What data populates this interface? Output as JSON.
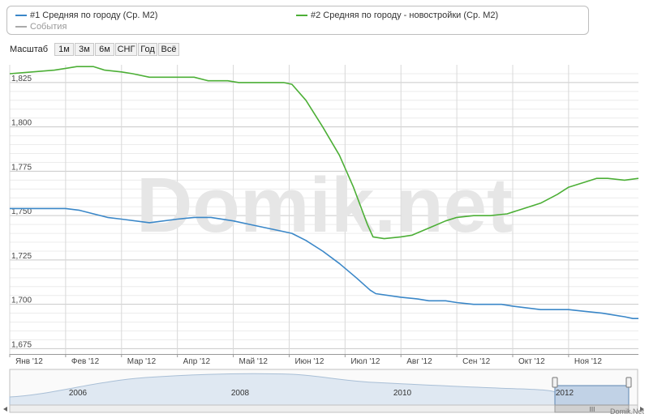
{
  "legend": {
    "items": [
      {
        "label": "#1 Средняя по городу (Ср. М2)",
        "color": "#3a87c8"
      },
      {
        "label": "#2 Средняя по городу - новостройки (Ср. М2)",
        "color": "#4caf36"
      },
      {
        "label": "События",
        "color": "#aaaaaa"
      }
    ]
  },
  "toolbar": {
    "scale_label": "Масштаб",
    "buttons": [
      "1м",
      "3м",
      "6м",
      "СНГ",
      "Год",
      "Всё"
    ]
  },
  "watermark": "Domik.net",
  "credit": "Domik.Net",
  "navigator": {
    "years": [
      "2006",
      "2008",
      "2010",
      "2012"
    ],
    "handle_glyph": "III"
  },
  "chart_data": {
    "type": "line",
    "title": "",
    "xlabel": "",
    "ylabel": "",
    "x_ticks": [
      "Янв '12",
      "Фев '12",
      "Мар '12",
      "Апр '12",
      "Май '12",
      "Июн '12",
      "Июл '12",
      "Авг '12",
      "Сен '12",
      "Окт '12",
      "Ноя '12"
    ],
    "y_ticks": [
      "1,675",
      "1,700",
      "1,725",
      "1,750",
      "1,775",
      "1,800",
      "1,825"
    ],
    "ylim": [
      1672,
      1835
    ],
    "x_range": [
      0,
      11.25
    ],
    "grid": true,
    "legend_position": "top",
    "series": [
      {
        "name": "#1 Средняя по городу (Ср. М2)",
        "color": "#3a87c8",
        "points": [
          [
            0,
            1754
          ],
          [
            0.5,
            1754
          ],
          [
            1.0,
            1754
          ],
          [
            1.25,
            1753
          ],
          [
            1.5,
            1751
          ],
          [
            1.75,
            1749
          ],
          [
            2.0,
            1748
          ],
          [
            2.5,
            1746
          ],
          [
            3.0,
            1748
          ],
          [
            3.3,
            1749
          ],
          [
            3.6,
            1749
          ],
          [
            4.0,
            1747
          ],
          [
            4.3,
            1745
          ],
          [
            4.6,
            1743
          ],
          [
            4.9,
            1741
          ],
          [
            5.05,
            1740
          ],
          [
            5.3,
            1736
          ],
          [
            5.6,
            1730
          ],
          [
            5.9,
            1723
          ],
          [
            6.2,
            1715
          ],
          [
            6.45,
            1708
          ],
          [
            6.55,
            1706
          ],
          [
            7.0,
            1704
          ],
          [
            7.3,
            1703
          ],
          [
            7.5,
            1702
          ],
          [
            7.8,
            1702
          ],
          [
            8.0,
            1701
          ],
          [
            8.3,
            1700
          ],
          [
            8.8,
            1700
          ],
          [
            9.0,
            1699
          ],
          [
            9.5,
            1697
          ],
          [
            10.0,
            1697
          ],
          [
            10.3,
            1696
          ],
          [
            10.6,
            1695
          ],
          [
            11.0,
            1693
          ],
          [
            11.15,
            1692
          ],
          [
            11.25,
            1692
          ]
        ]
      },
      {
        "name": "#2 Средняя по городу - новостройки (Ср. М2)",
        "color": "#4caf36",
        "points": [
          [
            0,
            1830
          ],
          [
            0.4,
            1831
          ],
          [
            0.8,
            1832
          ],
          [
            1.0,
            1833
          ],
          [
            1.2,
            1834
          ],
          [
            1.5,
            1834
          ],
          [
            1.7,
            1832
          ],
          [
            2.0,
            1831
          ],
          [
            2.2,
            1830
          ],
          [
            2.5,
            1828
          ],
          [
            3.0,
            1828
          ],
          [
            3.3,
            1828
          ],
          [
            3.55,
            1826
          ],
          [
            3.9,
            1826
          ],
          [
            4.1,
            1825
          ],
          [
            4.5,
            1825
          ],
          [
            4.9,
            1825
          ],
          [
            5.05,
            1824
          ],
          [
            5.3,
            1815
          ],
          [
            5.6,
            1800
          ],
          [
            5.9,
            1784
          ],
          [
            6.15,
            1766
          ],
          [
            6.4,
            1745
          ],
          [
            6.5,
            1738
          ],
          [
            6.7,
            1737
          ],
          [
            7.0,
            1738
          ],
          [
            7.2,
            1739
          ],
          [
            7.5,
            1743
          ],
          [
            7.8,
            1747
          ],
          [
            8.0,
            1749
          ],
          [
            8.3,
            1750
          ],
          [
            8.6,
            1750
          ],
          [
            8.9,
            1751
          ],
          [
            9.2,
            1754
          ],
          [
            9.5,
            1757
          ],
          [
            9.8,
            1762
          ],
          [
            10.0,
            1766
          ],
          [
            10.3,
            1769
          ],
          [
            10.5,
            1771
          ],
          [
            10.7,
            1771
          ],
          [
            11.0,
            1770
          ],
          [
            11.25,
            1771
          ]
        ]
      }
    ]
  }
}
